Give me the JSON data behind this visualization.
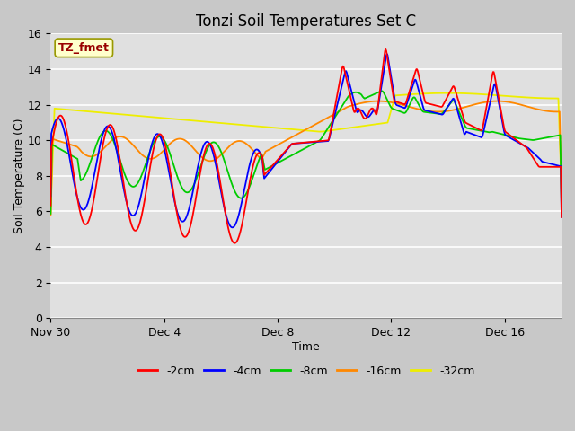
{
  "title": "Tonzi Soil Temperatures Set C",
  "xlabel": "Time",
  "ylabel": "Soil Temperature (C)",
  "annotation_text": "TZ_fmet",
  "annotation_bg": "#ffffcc",
  "annotation_border": "#999900",
  "annotation_text_color": "#990000",
  "xlim_days": [
    0,
    18
  ],
  "ylim": [
    0,
    16
  ],
  "yticks": [
    0,
    2,
    4,
    6,
    8,
    10,
    12,
    14,
    16
  ],
  "xtick_labels": [
    "Nov 30",
    "Dec 4",
    "Dec 8",
    "Dec 12",
    "Dec 16"
  ],
  "xtick_positions": [
    0,
    4,
    8,
    12,
    16
  ],
  "fig_bg": "#c8c8c8",
  "plot_bg": "#e0e0e0",
  "grid_color": "#ffffff",
  "line_colors": {
    "-2cm": "#ff0000",
    "-4cm": "#0000ff",
    "-8cm": "#00cc00",
    "-16cm": "#ff8800",
    "-32cm": "#eeee00"
  },
  "line_labels": [
    "-2cm",
    "-4cm",
    "-8cm",
    "-16cm",
    "-32cm"
  ],
  "legend_line_colors": [
    "#ff0000",
    "#0000ff",
    "#00cc00",
    "#ff8800",
    "#eeee00"
  ]
}
